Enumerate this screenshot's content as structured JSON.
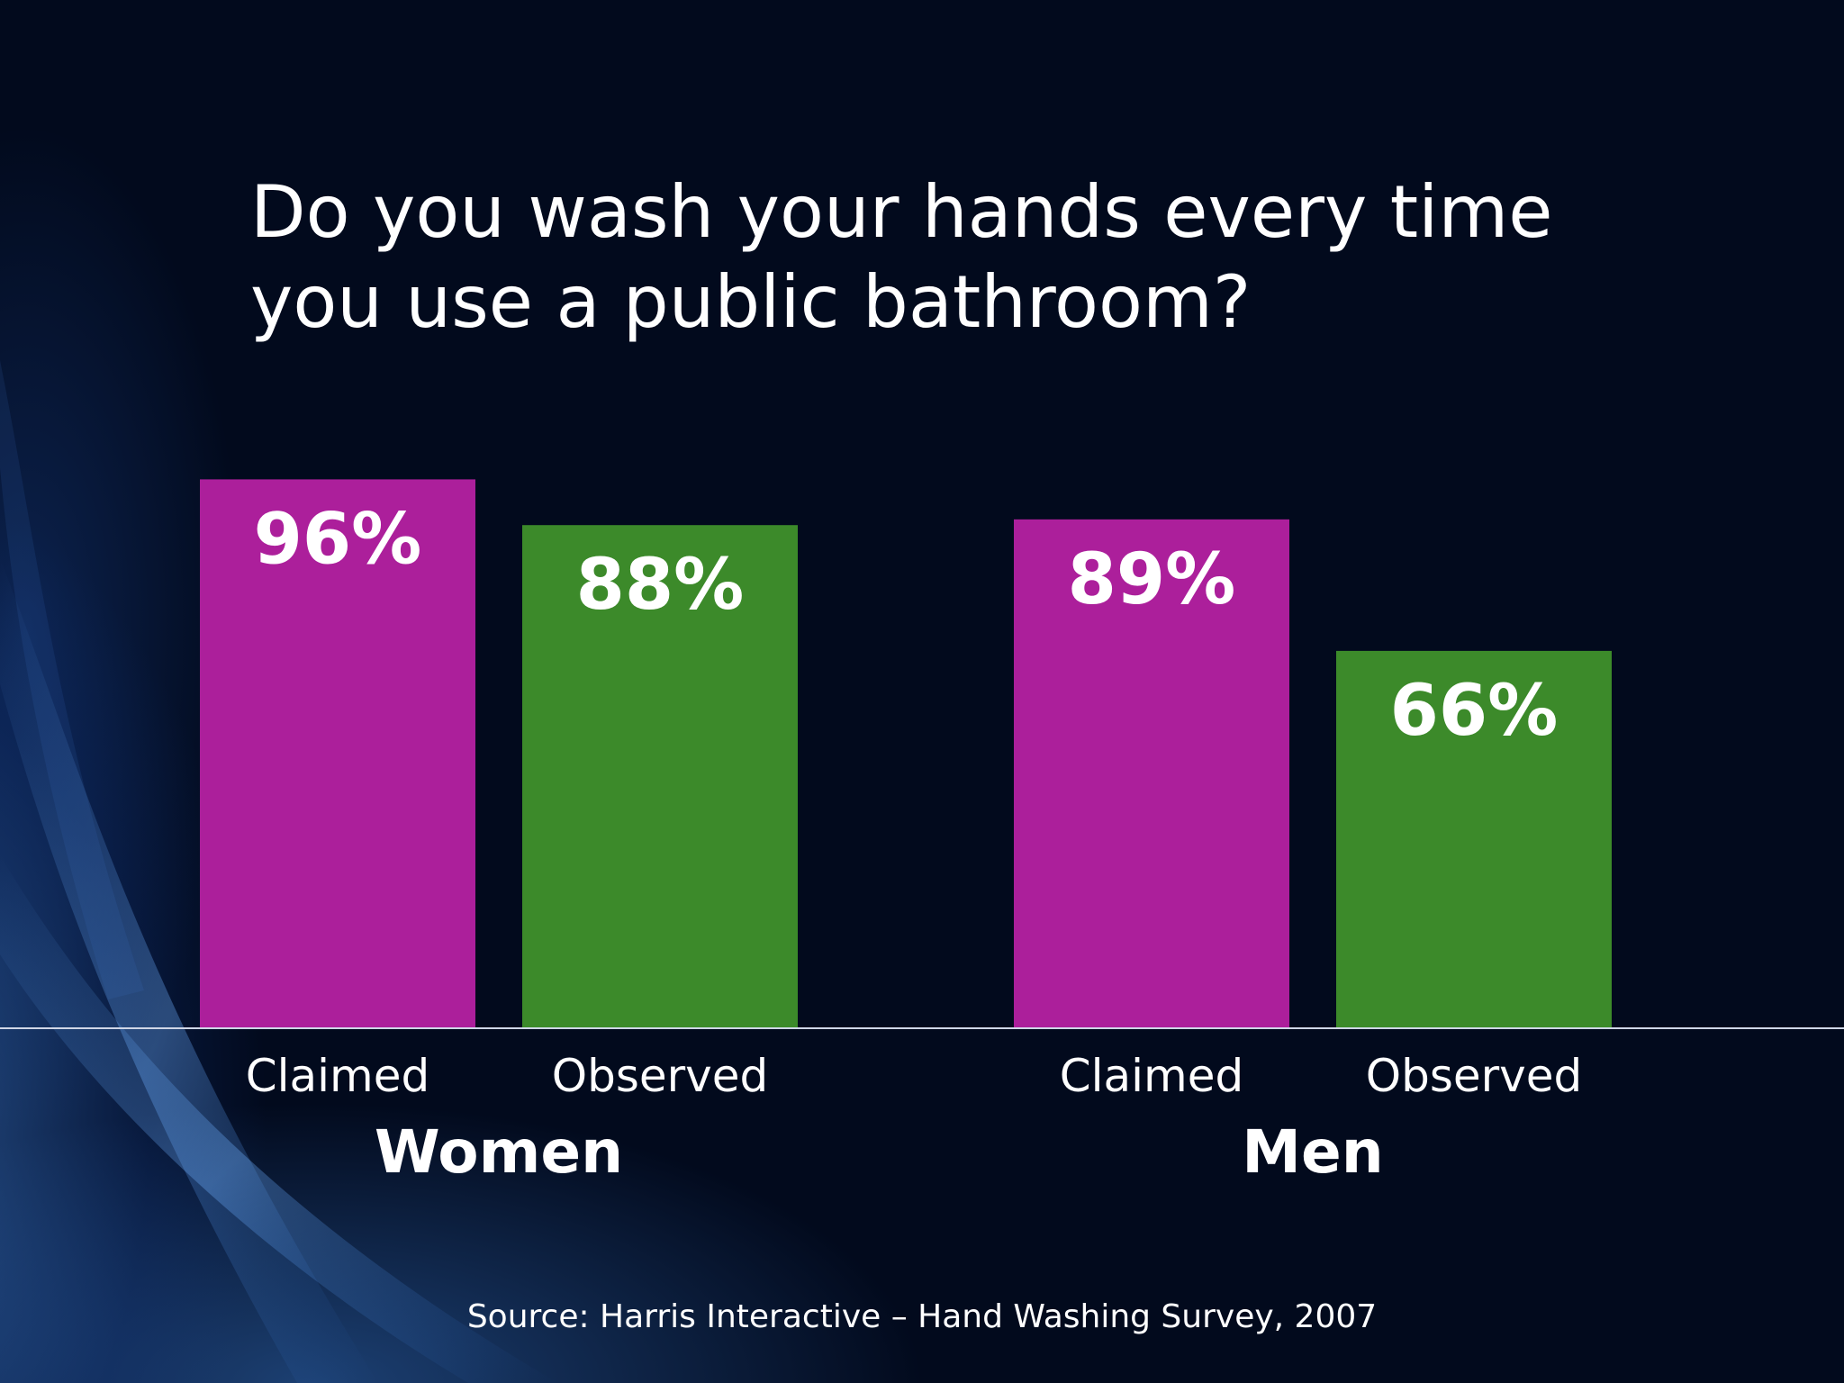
{
  "slide": {
    "title": "Do you wash your hands every time you use a public bathroom?",
    "source": "Source: Harris Interactive – Hand Washing Survey, 2007"
  },
  "colors": {
    "claimed": "#ac1f9b",
    "observed": "#3c8a2a",
    "background": "#020a1d",
    "text": "#ffffff"
  },
  "chart_data": {
    "type": "bar",
    "groups": [
      "Women",
      "Men"
    ],
    "categories": [
      "Claimed",
      "Observed"
    ],
    "series": [
      {
        "values": [
          96,
          88
        ]
      },
      {
        "values": [
          89,
          66
        ]
      }
    ],
    "value_labels": [
      [
        "96%",
        "88%"
      ],
      [
        "89%",
        "66%"
      ]
    ],
    "value_unit": "%",
    "ylim": [
      0,
      100
    ],
    "grid": false,
    "legend": "none"
  }
}
